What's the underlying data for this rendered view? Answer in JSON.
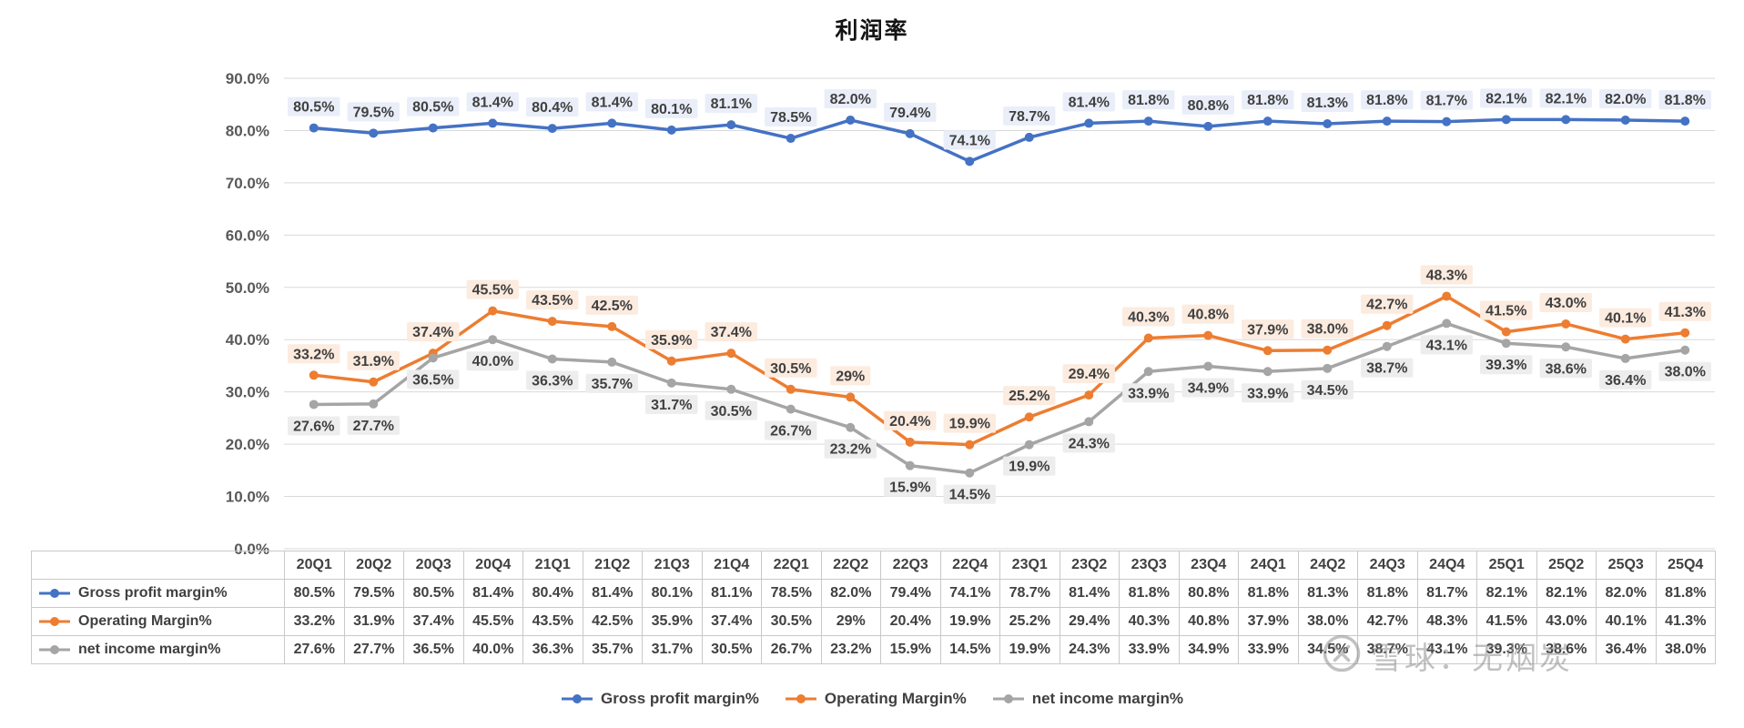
{
  "watermark": {
    "text": "雪球：无烟炭"
  },
  "colors": {
    "grid": "#d9d9d9",
    "axis_text": "#595959",
    "label_text": "#404040",
    "table_border": "#c9c9c9",
    "series_blue": "#4472C4",
    "series_orange": "#ED7D31",
    "series_gray": "#A5A5A5"
  },
  "chart_data": {
    "type": "line",
    "title": "利润率",
    "categories": [
      "20Q1",
      "20Q2",
      "20Q3",
      "20Q4",
      "21Q1",
      "21Q2",
      "21Q3",
      "21Q4",
      "22Q1",
      "22Q2",
      "22Q3",
      "22Q4",
      "23Q1",
      "23Q2",
      "23Q3",
      "23Q4",
      "24Q1",
      "24Q2",
      "24Q3",
      "24Q4",
      "25Q1",
      "25Q2",
      "25Q3",
      "25Q4"
    ],
    "series": [
      {
        "name": "Gross profit margin%",
        "color": "#4472C4",
        "label_bg": "#e9eef9",
        "label_position": "above",
        "values": [
          "80.5%",
          "79.5%",
          "80.5%",
          "81.4%",
          "80.4%",
          "81.4%",
          "80.1%",
          "81.1%",
          "78.5%",
          "82.0%",
          "79.4%",
          "74.1%",
          "78.7%",
          "81.4%",
          "81.8%",
          "80.8%",
          "81.8%",
          "81.3%",
          "81.8%",
          "81.7%",
          "82.1%",
          "82.1%",
          "82.0%",
          "81.8%"
        ]
      },
      {
        "name": "Operating Margin%",
        "color": "#ED7D31",
        "label_bg": "#fcebdf",
        "label_position": "above",
        "values": [
          "33.2%",
          "31.9%",
          "37.4%",
          "45.5%",
          "43.5%",
          "42.5%",
          "35.9%",
          "37.4%",
          "30.5%",
          "29%",
          "20.4%",
          "19.9%",
          "25.2%",
          "29.4%",
          "40.3%",
          "40.8%",
          "37.9%",
          "38.0%",
          "42.7%",
          "48.3%",
          "41.5%",
          "43.0%",
          "40.1%",
          "41.3%"
        ]
      },
      {
        "name": "net income margin%",
        "color": "#A5A5A5",
        "label_bg": "#ededed",
        "label_position": "below",
        "values": [
          "27.6%",
          "27.7%",
          "36.5%",
          "40.0%",
          "36.3%",
          "35.7%",
          "31.7%",
          "30.5%",
          "26.7%",
          "23.2%",
          "15.9%",
          "14.5%",
          "19.9%",
          "24.3%",
          "33.9%",
          "34.9%",
          "33.9%",
          "34.5%",
          "38.7%",
          "43.1%",
          "39.3%",
          "38.6%",
          "36.4%",
          "38.0%"
        ]
      }
    ],
    "y_axis": {
      "min": 0,
      "max": 90,
      "step": 10,
      "tick_labels": [
        "90.0%",
        "80.0%",
        "70.0%",
        "60.0%",
        "50.0%",
        "40.0%",
        "30.0%",
        "20.0%",
        "10.0%",
        "0.0%"
      ]
    },
    "grid": true,
    "legend_position": "bottom",
    "data_table": true
  }
}
